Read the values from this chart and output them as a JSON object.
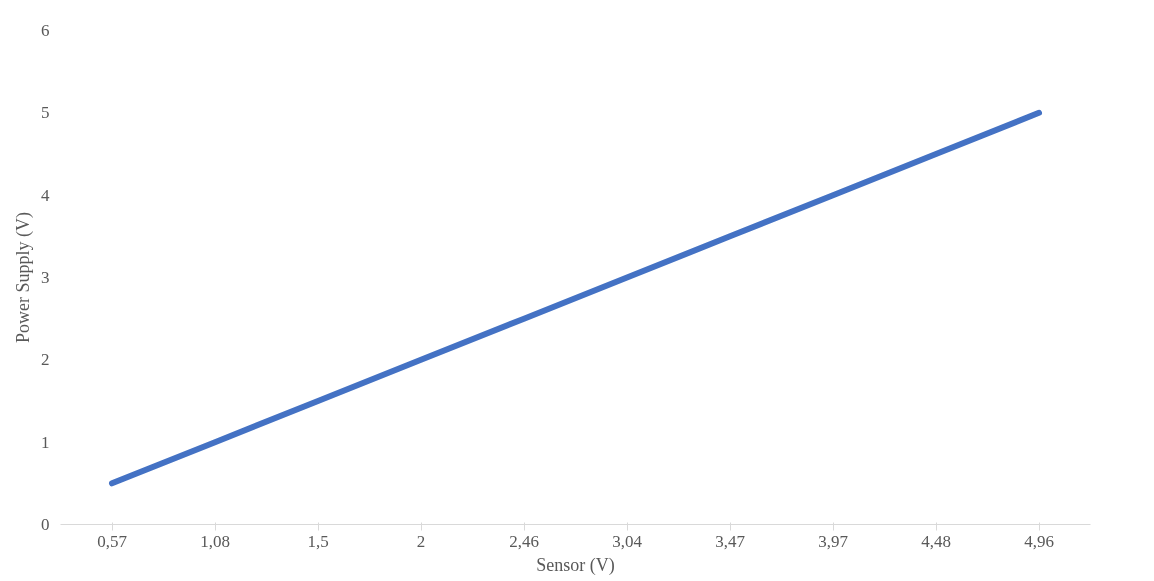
{
  "chart_data": {
    "type": "line",
    "xlabel": "Sensor (V)",
    "ylabel": "Power Supply (V)",
    "categories": [
      "0,57",
      "1,08",
      "1,5",
      "2",
      "2,46",
      "3,04",
      "3,47",
      "3,97",
      "4,48",
      "4,96"
    ],
    "series": [
      {
        "color": "#4472c4",
        "values": [
          0.5,
          1,
          1.5,
          2,
          2.5,
          3,
          3.5,
          4,
          4.5,
          5
        ]
      }
    ],
    "ylim": [
      0,
      6
    ],
    "yticks": [
      0,
      1,
      2,
      3,
      4,
      5,
      6
    ],
    "grid": false
  }
}
